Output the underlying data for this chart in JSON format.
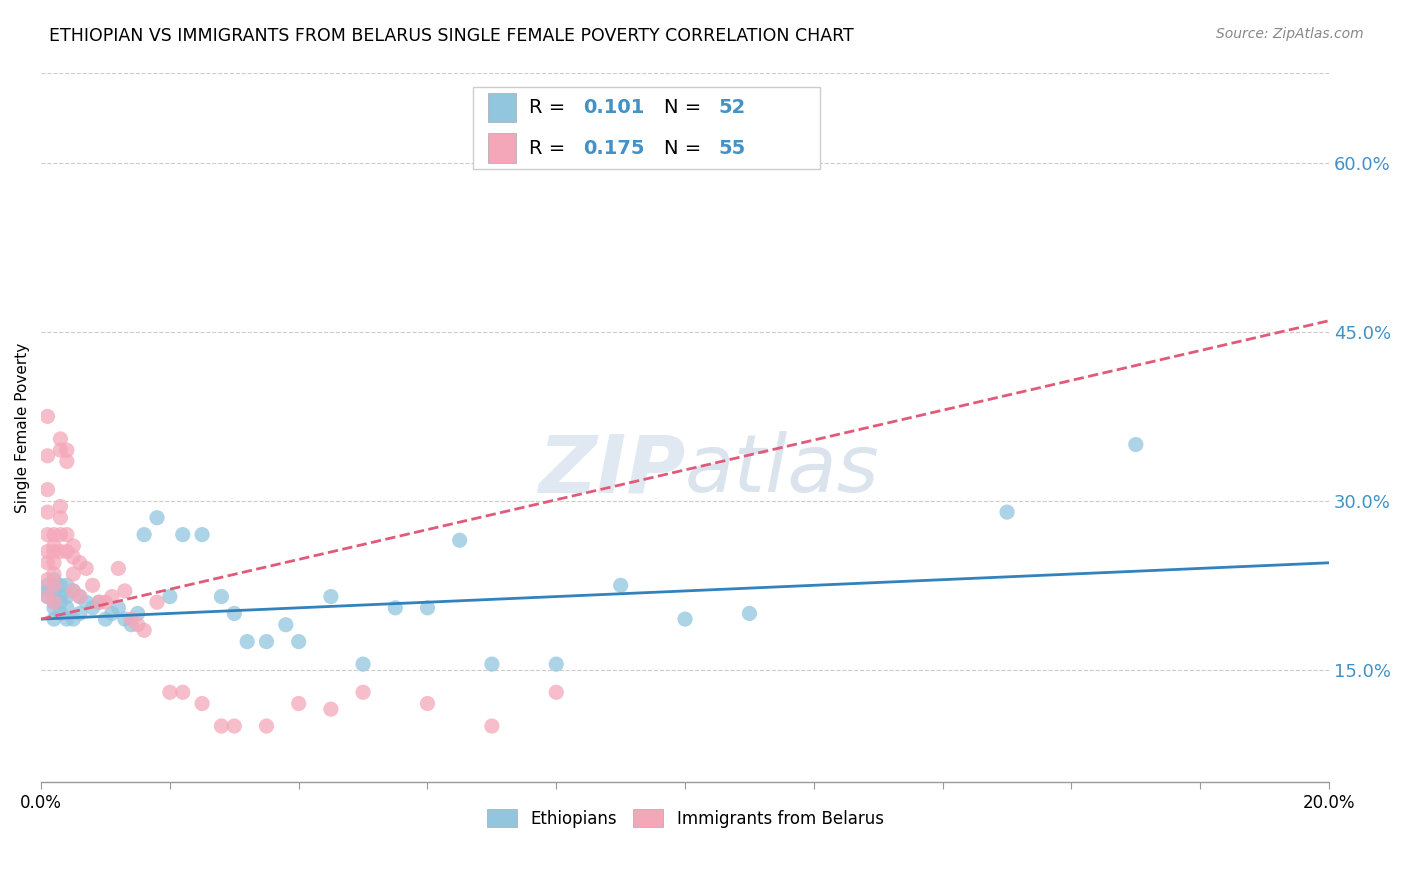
{
  "title": "ETHIOPIAN VS IMMIGRANTS FROM BELARUS SINGLE FEMALE POVERTY CORRELATION CHART",
  "source": "Source: ZipAtlas.com",
  "ylabel": "Single Female Poverty",
  "right_yticks": [
    "60.0%",
    "45.0%",
    "30.0%",
    "15.0%"
  ],
  "right_ytick_vals": [
    0.6,
    0.45,
    0.3,
    0.15
  ],
  "xlim": [
    0.0,
    0.2
  ],
  "ylim": [
    0.05,
    0.68
  ],
  "watermark": "ZIPatlas",
  "blue_color": "#92c5de",
  "pink_color": "#f4a7b9",
  "blue_line_color": "#3182bd",
  "pink_line_color": "#e05a7a",
  "legend_text_color": "#4292c6",
  "ethiopians_label": "Ethiopians",
  "belarus_label": "Immigrants from Belarus",
  "ethiopians_x": [
    0.001,
    0.001,
    0.001,
    0.002,
    0.002,
    0.002,
    0.002,
    0.002,
    0.003,
    0.003,
    0.003,
    0.003,
    0.004,
    0.004,
    0.004,
    0.004,
    0.005,
    0.005,
    0.006,
    0.006,
    0.007,
    0.008,
    0.009,
    0.01,
    0.011,
    0.012,
    0.013,
    0.014,
    0.015,
    0.016,
    0.018,
    0.02,
    0.022,
    0.025,
    0.028,
    0.03,
    0.032,
    0.035,
    0.038,
    0.04,
    0.045,
    0.05,
    0.055,
    0.06,
    0.065,
    0.07,
    0.08,
    0.09,
    0.1,
    0.11,
    0.15,
    0.17
  ],
  "ethiopians_y": [
    0.225,
    0.22,
    0.215,
    0.23,
    0.22,
    0.21,
    0.205,
    0.195,
    0.225,
    0.215,
    0.21,
    0.2,
    0.225,
    0.215,
    0.205,
    0.195,
    0.22,
    0.195,
    0.215,
    0.2,
    0.21,
    0.205,
    0.21,
    0.195,
    0.2,
    0.205,
    0.195,
    0.19,
    0.2,
    0.27,
    0.285,
    0.215,
    0.27,
    0.27,
    0.215,
    0.2,
    0.175,
    0.175,
    0.19,
    0.175,
    0.215,
    0.155,
    0.205,
    0.205,
    0.265,
    0.155,
    0.155,
    0.225,
    0.195,
    0.2,
    0.29,
    0.35
  ],
  "belarus_x": [
    0.001,
    0.001,
    0.001,
    0.001,
    0.001,
    0.001,
    0.001,
    0.001,
    0.001,
    0.002,
    0.002,
    0.002,
    0.002,
    0.002,
    0.002,
    0.002,
    0.003,
    0.003,
    0.003,
    0.003,
    0.003,
    0.003,
    0.004,
    0.004,
    0.004,
    0.004,
    0.005,
    0.005,
    0.005,
    0.005,
    0.006,
    0.006,
    0.007,
    0.008,
    0.009,
    0.01,
    0.011,
    0.012,
    0.013,
    0.014,
    0.015,
    0.016,
    0.018,
    0.02,
    0.022,
    0.025,
    0.028,
    0.03,
    0.035,
    0.04,
    0.045,
    0.05,
    0.06,
    0.07,
    0.08
  ],
  "belarus_y": [
    0.375,
    0.34,
    0.31,
    0.29,
    0.27,
    0.255,
    0.245,
    0.23,
    0.215,
    0.27,
    0.26,
    0.255,
    0.245,
    0.235,
    0.225,
    0.21,
    0.355,
    0.345,
    0.295,
    0.285,
    0.27,
    0.255,
    0.345,
    0.335,
    0.27,
    0.255,
    0.26,
    0.25,
    0.235,
    0.22,
    0.245,
    0.215,
    0.24,
    0.225,
    0.21,
    0.21,
    0.215,
    0.24,
    0.22,
    0.195,
    0.19,
    0.185,
    0.21,
    0.13,
    0.13,
    0.12,
    0.1,
    0.1,
    0.1,
    0.12,
    0.115,
    0.13,
    0.12,
    0.1,
    0.13
  ],
  "ethiopia_line_x0": 0.0,
  "ethiopia_line_x1": 0.2,
  "ethiopia_line_y0": 0.195,
  "ethiopia_line_y1": 0.245,
  "belarus_line_x0": 0.0,
  "belarus_line_x1": 0.2,
  "belarus_line_y0": 0.195,
  "belarus_line_y1": 0.46
}
